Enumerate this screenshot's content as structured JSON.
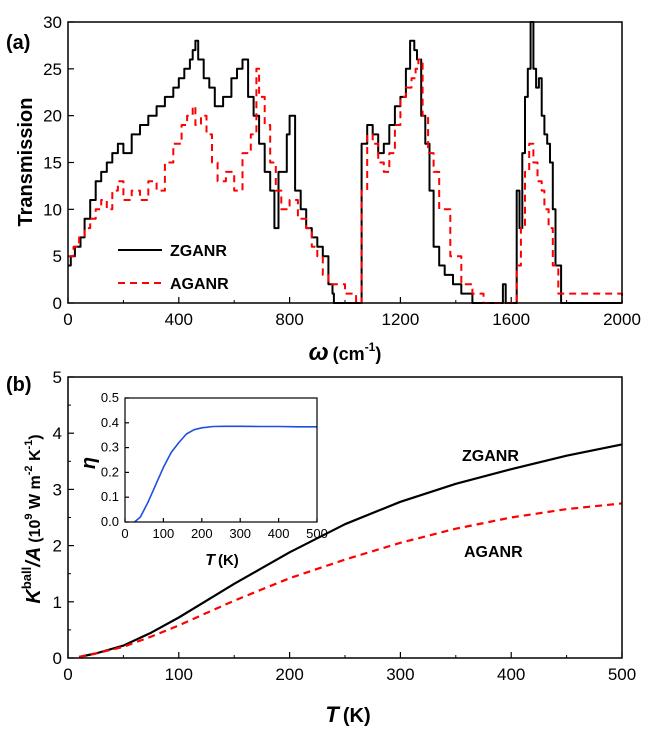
{
  "chart_data": [
    {
      "type": "line",
      "panel_label": "(a)",
      "xlabel_symbol": "ω",
      "xlabel_unit": "(cm",
      "xlabel_unit_sup": "-1",
      "xlabel_unit_end": ")",
      "ylabel": "Transmission",
      "xlim": [
        0,
        2000
      ],
      "ylim": [
        0,
        30
      ],
      "xticks": [
        "0",
        "400",
        "800",
        "1200",
        "1600",
        "2000"
      ],
      "yticks": [
        "0",
        "5",
        "10",
        "15",
        "20",
        "25",
        "30"
      ],
      "legend_placement": "bottom-left",
      "series": [
        {
          "name": "ZGANR",
          "color": "#000000",
          "style": "solid",
          "x": [
            0,
            10,
            25,
            45,
            60,
            80,
            100,
            120,
            140,
            160,
            180,
            200,
            230,
            260,
            290,
            320,
            350,
            380,
            400,
            420,
            440,
            450,
            460,
            470,
            490,
            510,
            530,
            560,
            590,
            610,
            630,
            650,
            670,
            690,
            710,
            730,
            745,
            760,
            790,
            800,
            820,
            840,
            860,
            880,
            900,
            920,
            940,
            955,
            960,
            1045,
            1060,
            1080,
            1100,
            1120,
            1140,
            1160,
            1180,
            1200,
            1220,
            1235,
            1250,
            1260,
            1275,
            1290,
            1305,
            1320,
            1340,
            1360,
            1390,
            1420,
            1460,
            1500,
            1550,
            1570,
            1580,
            1610,
            1620,
            1630,
            1640,
            1650,
            1660,
            1670,
            1680,
            1690,
            1700,
            1710,
            1720,
            1730,
            1740,
            1750,
            1760,
            1780,
            2000
          ],
          "y": [
            4,
            5,
            6,
            7,
            9,
            11,
            13,
            14,
            15,
            16,
            17,
            16,
            18,
            19,
            20,
            21,
            22,
            23,
            24,
            25,
            26,
            27,
            28,
            26,
            24,
            23,
            21,
            22,
            24,
            25,
            26,
            22,
            20,
            17,
            14,
            12,
            8,
            14,
            18,
            20,
            12,
            10,
            8,
            7,
            6,
            5,
            2,
            1,
            0,
            0,
            17,
            19,
            18,
            16,
            17,
            19,
            21,
            22,
            25,
            28,
            27,
            26,
            20,
            17,
            12,
            6,
            4,
            3,
            2,
            1,
            0,
            0,
            0,
            2,
            0,
            0,
            12,
            8,
            16,
            22,
            25,
            30,
            25,
            23,
            24,
            20,
            18,
            17,
            15,
            10,
            4,
            0,
            0
          ]
        },
        {
          "name": "AGANR",
          "color": "#ff0000",
          "style": "dashed",
          "x": [
            0,
            20,
            40,
            60,
            80,
            100,
            120,
            140,
            160,
            180,
            200,
            230,
            260,
            290,
            320,
            350,
            380,
            410,
            430,
            450,
            460,
            480,
            500,
            520,
            540,
            570,
            600,
            630,
            660,
            680,
            690,
            710,
            730,
            750,
            770,
            800,
            830,
            860,
            880,
            900,
            920,
            940,
            960,
            1000,
            1040,
            1060,
            1080,
            1100,
            1120,
            1140,
            1160,
            1180,
            1200,
            1220,
            1240,
            1255,
            1265,
            1280,
            1300,
            1320,
            1340,
            1380,
            1420,
            1460,
            1500,
            1550,
            1600,
            1620,
            1635,
            1650,
            1665,
            1680,
            1695,
            1710,
            1720,
            1735,
            1750,
            1770,
            2000
          ],
          "y": [
            5,
            6,
            7,
            8,
            9,
            10,
            11,
            10,
            12,
            13,
            11,
            12,
            11,
            13,
            12,
            15,
            17,
            19,
            20,
            21,
            19,
            20,
            18,
            15,
            13,
            14,
            12,
            16,
            18,
            25,
            22,
            19,
            15,
            12,
            10,
            11,
            9,
            8,
            6,
            5,
            3,
            2,
            2,
            1,
            0,
            12,
            18,
            17,
            15,
            14,
            16,
            19,
            22,
            23,
            24,
            25,
            26,
            20,
            16,
            14,
            10,
            5,
            2,
            1,
            0,
            0,
            0,
            4,
            8,
            14,
            17,
            15,
            13,
            12,
            10,
            8,
            4,
            1,
            0
          ]
        }
      ]
    },
    {
      "type": "line",
      "panel_label": "(b)",
      "xlabel_symbol": "T",
      "xlabel_unit": "(K)",
      "ylabel_main": "K",
      "ylabel_sup": "ball",
      "ylabel_div": "/A",
      "ylabel_unit": "(10",
      "ylabel_unit_sup1": "9",
      "ylabel_unit_mid": " W m",
      "ylabel_unit_sup2": "-2",
      "ylabel_unit_k": " K",
      "ylabel_unit_sup3": "-1",
      "ylabel_unit_end": ")",
      "xlim": [
        0,
        500
      ],
      "ylim": [
        0,
        5
      ],
      "xticks": [
        "0",
        "100",
        "200",
        "300",
        "400",
        "500"
      ],
      "yticks": [
        "0",
        "1",
        "2",
        "3",
        "4",
        "5"
      ],
      "annotations": [
        "ZGANR",
        "AGANR"
      ],
      "series": [
        {
          "name": "ZGANR",
          "color": "#000000",
          "style": "solid",
          "x": [
            10,
            25,
            50,
            75,
            100,
            125,
            150,
            175,
            200,
            250,
            300,
            350,
            400,
            450,
            500
          ],
          "y": [
            0.02,
            0.08,
            0.22,
            0.45,
            0.72,
            1.02,
            1.32,
            1.6,
            1.88,
            2.38,
            2.78,
            3.1,
            3.36,
            3.6,
            3.8
          ]
        },
        {
          "name": "AGANR",
          "color": "#ff0000",
          "style": "dashed",
          "x": [
            10,
            25,
            50,
            75,
            100,
            125,
            150,
            175,
            200,
            250,
            300,
            350,
            400,
            450,
            500
          ],
          "y": [
            0.02,
            0.08,
            0.2,
            0.38,
            0.58,
            0.8,
            1.02,
            1.22,
            1.42,
            1.75,
            2.05,
            2.3,
            2.5,
            2.65,
            2.75
          ]
        }
      ],
      "inset": {
        "xlabel_symbol": "T",
        "xlabel_unit": "(K)",
        "ylabel": "η",
        "xlim": [
          0,
          500
        ],
        "ylim": [
          0,
          0.5
        ],
        "xticks": [
          "0",
          "100",
          "200",
          "300",
          "400",
          "500"
        ],
        "yticks": [
          "0.0",
          "0.1",
          "0.2",
          "0.3",
          "0.4",
          "0.5"
        ],
        "series": [
          {
            "color": "#1f4fe0",
            "x": [
              25,
              40,
              60,
              80,
              100,
              120,
              140,
              160,
              180,
              200,
              230,
              260,
              300,
              350,
              400,
              450,
              500
            ],
            "y": [
              0.0,
              0.02,
              0.08,
              0.15,
              0.22,
              0.28,
              0.32,
              0.355,
              0.372,
              0.38,
              0.385,
              0.386,
              0.386,
              0.385,
              0.385,
              0.384,
              0.384
            ]
          }
        ]
      }
    }
  ]
}
